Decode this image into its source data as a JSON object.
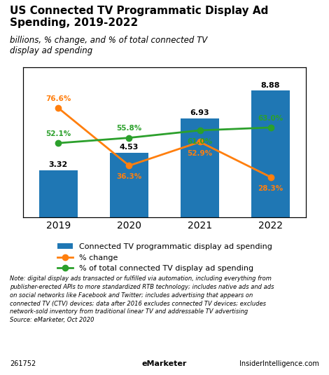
{
  "chart_data": {
    "type": "bar",
    "title": "US Connected TV Programmatic Display Ad\nSpending, 2019-2022",
    "subtitle": "billions, % change, and % of total connected TV\ndisplay ad spending",
    "categories": [
      "2019",
      "2020",
      "2021",
      "2022"
    ],
    "series": [
      {
        "name": "Connected TV programmatic display ad spending",
        "type": "bar",
        "values": [
          3.32,
          4.53,
          6.93,
          8.88
        ]
      },
      {
        "name": "% change",
        "type": "line",
        "axis": "y2",
        "marker": "o",
        "values": [
          76.6,
          36.3,
          52.9,
          28.3
        ],
        "value_labels": [
          "76.6%",
          "36.3%",
          "52.9%",
          "28.3%"
        ]
      },
      {
        "name": "% of total connected TV display ad spending",
        "type": "line",
        "axis": "y2",
        "marker": "o",
        "values": [
          52.1,
          55.8,
          61.0,
          63.0
        ],
        "value_labels": [
          "52.1%",
          "55.8%",
          "61.0%",
          "63.0%"
        ]
      }
    ],
    "ylim": [
      0,
      10.5
    ],
    "y2lim": [
      0,
      105
    ],
    "tick_labels": "x",
    "data_labels": true,
    "legend": "upper center",
    "annotations": [
      "Note: digital display ads transacted or fulfilled via automation, including everything from\npublisher-erected APIs to more standardized RTB technology; includes native ads and ads\non social networks like Facebook and Twitter; includes advertising that appears on\nconnected TV (CTV) devices; data after 2016 excludes connected TV devices; excludes\nnetwork-sold inventory from traditional linear TV and addressable TV advertising\nSource: eMarketer, Oct 2020",
      "261752",
      "eMarketer",
      "InsiderIntelligence.com"
    ]
  }
}
